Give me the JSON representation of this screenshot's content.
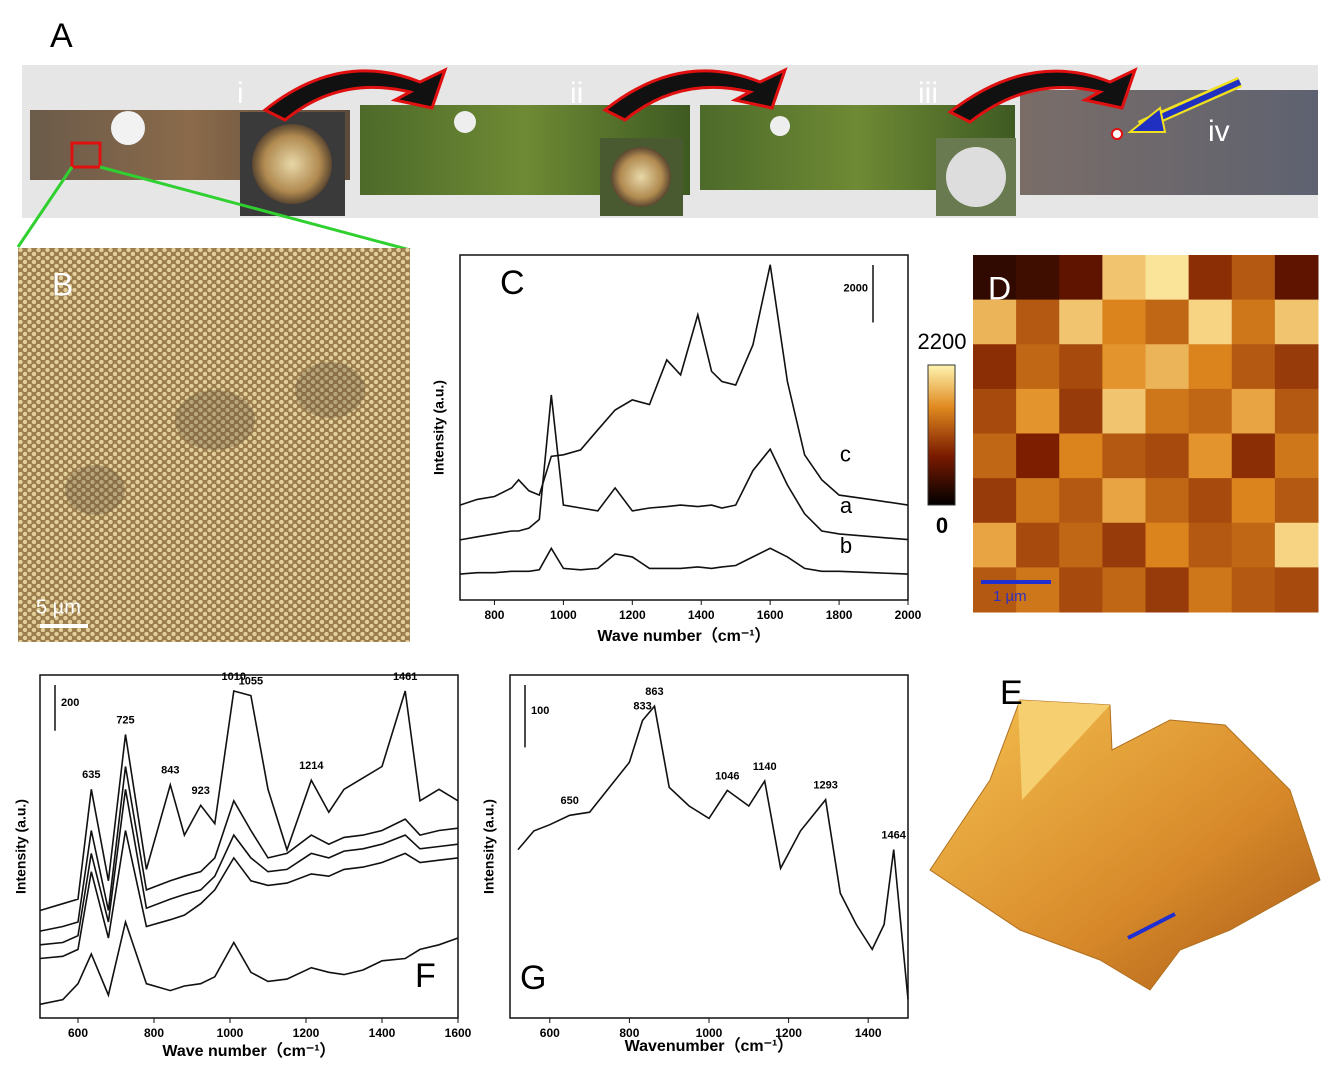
{
  "figure": {
    "A": {
      "label": "A",
      "steps": [
        "i",
        "ii",
        "iii",
        "iv"
      ]
    },
    "B": {
      "label": "B",
      "scale": "5 µm"
    },
    "E": {
      "label": "E"
    }
  },
  "chart_data": [
    {
      "type": "line",
      "label": "C",
      "xlabel": "Wave number（cm⁻¹）",
      "ylabel": "Intensity (a.u.)",
      "xlim": [
        700,
        2000
      ],
      "ylim": [
        0,
        12000
      ],
      "xticks": [
        800,
        1000,
        1200,
        1400,
        1600,
        1800,
        2000
      ],
      "scale_bar": 2000,
      "x": [
        700,
        750,
        800,
        850,
        870,
        900,
        930,
        965,
        1000,
        1050,
        1100,
        1150,
        1200,
        1250,
        1300,
        1340,
        1390,
        1430,
        1460,
        1500,
        1550,
        1600,
        1650,
        1700,
        1750,
        1800,
        1900,
        2000
      ],
      "series": [
        {
          "name": "c",
          "color": "#111111",
          "values": [
            3300,
            3500,
            3600,
            3900,
            4180,
            3800,
            3650,
            5000,
            5050,
            5220,
            5920,
            6610,
            6960,
            6800,
            8350,
            7830,
            9920,
            7950,
            7600,
            7480,
            8870,
            11660,
            7600,
            5050,
            4180,
            3650,
            3480,
            3300
          ]
        },
        {
          "name": "a",
          "color": "#111111",
          "values": [
            2090,
            2200,
            2300,
            2400,
            2400,
            2500,
            2800,
            7130,
            3300,
            3200,
            3100,
            3900,
            3100,
            3200,
            3250,
            3300,
            3250,
            3300,
            3200,
            3300,
            4500,
            5250,
            4000,
            3000,
            2400,
            2300,
            2200,
            2100
          ]
        },
        {
          "name": "b",
          "color": "#111111",
          "values": [
            900,
            950,
            950,
            1000,
            1000,
            1000,
            1050,
            1800,
            1100,
            1050,
            1100,
            1600,
            1500,
            1100,
            1100,
            1100,
            1150,
            1100,
            1150,
            1200,
            1500,
            1800,
            1500,
            1100,
            1000,
            1000,
            950,
            900
          ]
        }
      ]
    },
    {
      "type": "heatmap",
      "label": "D",
      "scale": "1 µm",
      "zlim": [
        0,
        2200
      ],
      "colorbar_ticks": [
        0,
        2200
      ],
      "values": [
        [
          300,
          400,
          600,
          1900,
          2100,
          900,
          1200,
          600
        ],
        [
          1800,
          1200,
          1900,
          1500,
          1300,
          2000,
          1400,
          1900
        ],
        [
          900,
          1300,
          1100,
          1600,
          1800,
          1500,
          1200,
          1000
        ],
        [
          1100,
          1600,
          1000,
          1900,
          1400,
          1300,
          1700,
          1200
        ],
        [
          1300,
          800,
          1500,
          1200,
          1100,
          1600,
          900,
          1400
        ],
        [
          1000,
          1400,
          1200,
          1700,
          1300,
          1100,
          1500,
          1200
        ],
        [
          1700,
          1100,
          1300,
          1000,
          1500,
          1200,
          1300,
          2000
        ],
        [
          1200,
          1400,
          1100,
          1300,
          1000,
          1400,
          1200,
          1100
        ]
      ]
    },
    {
      "type": "line",
      "label": "F",
      "xlabel": "Wave number（cm⁻¹）",
      "ylabel": "Intensity (a.u.)",
      "xlim": [
        500,
        1600
      ],
      "ylim": [
        0,
        1500
      ],
      "xticks": [
        600,
        800,
        1000,
        1200,
        1400,
        1600
      ],
      "scale_bar": 200,
      "peaks": [
        635,
        725,
        843,
        923,
        1010,
        1055,
        1214,
        1461
      ],
      "x": [
        500,
        560,
        600,
        635,
        680,
        725,
        780,
        843,
        880,
        923,
        960,
        1010,
        1055,
        1100,
        1150,
        1214,
        1260,
        1300,
        1350,
        1400,
        1461,
        1500,
        1550,
        1600
      ],
      "series": [
        {
          "color": "#111111",
          "values": [
            470,
            500,
            520,
            1000,
            600,
            1240,
            650,
            1020,
            800,
            930,
            850,
            1430,
            1410,
            1000,
            735,
            1040,
            900,
            1000,
            1050,
            1100,
            1430,
            950,
            1000,
            950
          ]
        },
        {
          "color": "#111111",
          "values": [
            380,
            400,
            420,
            820,
            470,
            1100,
            560,
            600,
            620,
            640,
            700,
            950,
            820,
            700,
            720,
            800,
            760,
            790,
            800,
            820,
            870,
            800,
            820,
            830
          ]
        },
        {
          "color": "#111111",
          "values": [
            320,
            330,
            360,
            720,
            420,
            1000,
            480,
            520,
            540,
            560,
            620,
            800,
            700,
            640,
            650,
            720,
            700,
            730,
            740,
            760,
            800,
            740,
            750,
            760
          ]
        },
        {
          "color": "#111111",
          "values": [
            260,
            270,
            300,
            640,
            350,
            820,
            400,
            430,
            450,
            500,
            560,
            700,
            600,
            580,
            590,
            630,
            620,
            650,
            660,
            680,
            720,
            680,
            690,
            700
          ]
        },
        {
          "color": "#111111",
          "values": [
            60,
            80,
            150,
            280,
            100,
            420,
            150,
            120,
            140,
            150,
            180,
            330,
            200,
            160,
            170,
            220,
            200,
            190,
            210,
            250,
            260,
            300,
            320,
            350
          ]
        }
      ]
    },
    {
      "type": "line",
      "label": "G",
      "xlabel": "Wavenumber（cm⁻¹）",
      "ylabel": "Intensity (a.u.)",
      "xlim": [
        500,
        1500
      ],
      "ylim": [
        0,
        550
      ],
      "xticks": [
        600,
        800,
        1000,
        1200,
        1400
      ],
      "scale_bar": 100,
      "peaks": [
        650,
        833,
        863,
        1046,
        1140,
        1293,
        1464
      ],
      "x": [
        520,
        560,
        600,
        650,
        700,
        750,
        800,
        833,
        863,
        900,
        950,
        1000,
        1046,
        1100,
        1140,
        1180,
        1230,
        1293,
        1330,
        1370,
        1410,
        1440,
        1464,
        1500
      ],
      "series": [
        {
          "color": "#111111",
          "values": [
            270,
            300,
            310,
            325,
            330,
            370,
            410,
            477,
            500,
            370,
            340,
            320,
            365,
            340,
            380,
            240,
            300,
            350,
            200,
            150,
            110,
            150,
            270,
            30
          ]
        }
      ]
    }
  ]
}
